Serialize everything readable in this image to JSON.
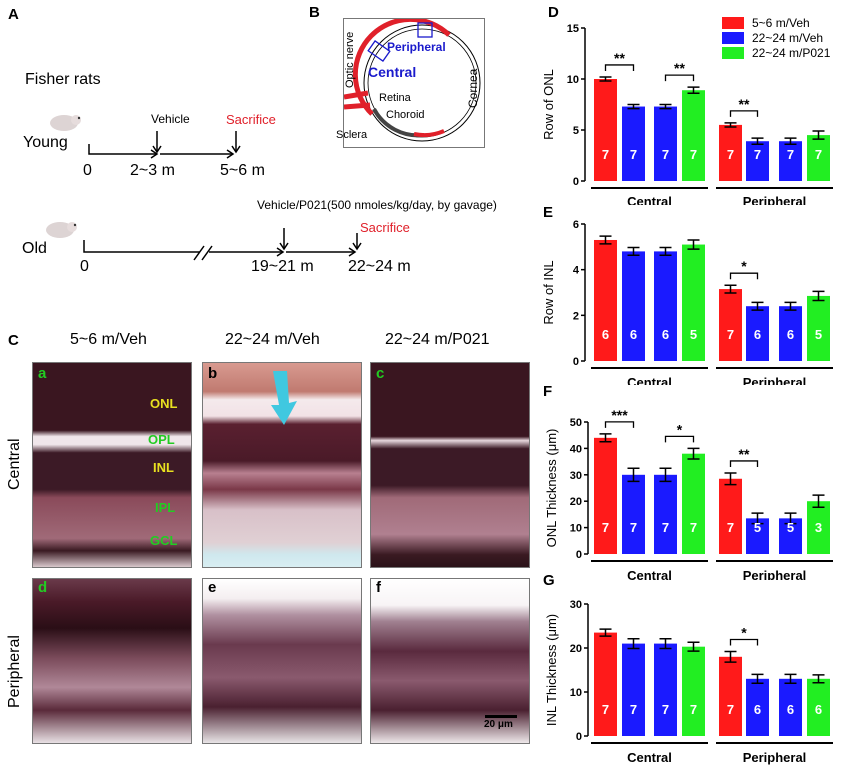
{
  "panel_a": {
    "label": "A",
    "title": "Fisher rats",
    "young": {
      "label": "Young",
      "ticks": [
        "0",
        "2~3 m",
        "5~6 m"
      ],
      "treatment": "Vehicle",
      "endpoint": "Sacrifice"
    },
    "old": {
      "label": "Old",
      "ticks": [
        "0",
        "19~21 m",
        "22~24 m"
      ],
      "treatment": "Vehicle/P021(500 nmoles/kg/day, by gavage)",
      "endpoint": "Sacrifice"
    }
  },
  "panel_b": {
    "label": "B",
    "labels": {
      "optic_nerve": "Optic nerve",
      "peripheral": "Peripheral",
      "central": "Central",
      "cornea": "Cornea",
      "retina": "Retina",
      "choroid": "Choroid",
      "sclera": "Sclera"
    }
  },
  "panel_c": {
    "label": "C",
    "columns": [
      "5~6 m/Veh",
      "22~24 m/Veh",
      "22~24 m/P021"
    ],
    "rows": [
      "Central",
      "Peripheral"
    ],
    "subpanels": [
      "a",
      "b",
      "c",
      "d",
      "e",
      "f"
    ],
    "layers": [
      "ONL",
      "OPL",
      "INL",
      "IPL",
      "GCL"
    ],
    "scale_bar": "20 μm"
  },
  "colors": {
    "young_veh": "#ff1a1a",
    "old_veh": "#1a1aff",
    "old_p021": "#22ee22",
    "sacrifice": "#e0202a",
    "sig_blue": "#1a1acc"
  },
  "chart_data": [
    {
      "panel": "D",
      "type": "bar",
      "ylabel": "Row of ONL",
      "ylim": [
        0,
        15
      ],
      "yticks": [
        0,
        5,
        10,
        15
      ],
      "groups": [
        "Central",
        "Peripheral"
      ],
      "legend": [
        "5~6 m/Veh",
        "22~24 m/Veh",
        "22~24 m/P021"
      ],
      "legend_position": "top-right",
      "bars": [
        {
          "group": "Central",
          "series": "5~6 m/Veh",
          "value": 10.0,
          "err": 0.2,
          "n": "7"
        },
        {
          "group": "Central",
          "series": "22~24 m/Veh",
          "value": 7.3,
          "err": 0.2,
          "n": "7"
        },
        {
          "group": "Central",
          "series": "22~24 m/Veh",
          "value": 7.3,
          "err": 0.2,
          "n": "7"
        },
        {
          "group": "Central",
          "series": "22~24 m/P021",
          "value": 8.9,
          "err": 0.3,
          "n": "7"
        },
        {
          "group": "Peripheral",
          "series": "5~6 m/Veh",
          "value": 5.5,
          "err": 0.2,
          "n": "7"
        },
        {
          "group": "Peripheral",
          "series": "22~24 m/Veh",
          "value": 3.9,
          "err": 0.3,
          "n": "7"
        },
        {
          "group": "Peripheral",
          "series": "22~24 m/Veh",
          "value": 3.9,
          "err": 0.3,
          "n": "7"
        },
        {
          "group": "Peripheral",
          "series": "22~24 m/P021",
          "value": 4.5,
          "err": 0.4,
          "n": "7"
        }
      ],
      "significance": [
        {
          "bars": [
            0,
            1
          ],
          "label": "**"
        },
        {
          "bars": [
            2,
            3
          ],
          "label": "**"
        },
        {
          "bars": [
            4,
            5
          ],
          "label": "**"
        }
      ]
    },
    {
      "panel": "E",
      "type": "bar",
      "ylabel": "Row of INL",
      "ylim": [
        0,
        6
      ],
      "yticks": [
        0,
        2,
        4,
        6
      ],
      "groups": [
        "Central",
        "Peripheral"
      ],
      "bars": [
        {
          "group": "Central",
          "series": "5~6 m/Veh",
          "value": 5.3,
          "err": 0.17,
          "n": "6"
        },
        {
          "group": "Central",
          "series": "22~24 m/Veh",
          "value": 4.8,
          "err": 0.17,
          "n": "6"
        },
        {
          "group": "Central",
          "series": "22~24 m/Veh",
          "value": 4.8,
          "err": 0.17,
          "n": "6"
        },
        {
          "group": "Central",
          "series": "22~24 m/P021",
          "value": 5.1,
          "err": 0.2,
          "n": "5"
        },
        {
          "group": "Peripheral",
          "series": "5~6 m/Veh",
          "value": 3.15,
          "err": 0.17,
          "n": "7"
        },
        {
          "group": "Peripheral",
          "series": "22~24 m/Veh",
          "value": 2.4,
          "err": 0.17,
          "n": "6"
        },
        {
          "group": "Peripheral",
          "series": "22~24 m/Veh",
          "value": 2.4,
          "err": 0.17,
          "n": "6"
        },
        {
          "group": "Peripheral",
          "series": "22~24 m/P021",
          "value": 2.85,
          "err": 0.2,
          "n": "5"
        }
      ],
      "significance": [
        {
          "bars": [
            4,
            5
          ],
          "label": "*"
        }
      ]
    },
    {
      "panel": "F",
      "type": "bar",
      "ylabel": "ONL Thickness (μm)",
      "ylim": [
        0,
        50
      ],
      "yticks": [
        0,
        10,
        20,
        30,
        40,
        50
      ],
      "groups": [
        "Central",
        "Peripheral"
      ],
      "bars": [
        {
          "group": "Central",
          "series": "5~6 m/Veh",
          "value": 44,
          "err": 1.5,
          "n": "7"
        },
        {
          "group": "Central",
          "series": "22~24 m/Veh",
          "value": 30,
          "err": 2.5,
          "n": "7"
        },
        {
          "group": "Central",
          "series": "22~24 m/Veh",
          "value": 30,
          "err": 2.5,
          "n": "7"
        },
        {
          "group": "Central",
          "series": "22~24 m/P021",
          "value": 38,
          "err": 2,
          "n": "7"
        },
        {
          "group": "Peripheral",
          "series": "5~6 m/Veh",
          "value": 28.5,
          "err": 2.2,
          "n": "7"
        },
        {
          "group": "Peripheral",
          "series": "22~24 m/Veh",
          "value": 13.5,
          "err": 2,
          "n": "5"
        },
        {
          "group": "Peripheral",
          "series": "22~24 m/Veh",
          "value": 13.5,
          "err": 2,
          "n": "5"
        },
        {
          "group": "Peripheral",
          "series": "22~24 m/P021",
          "value": 20,
          "err": 2.3,
          "n": "3"
        }
      ],
      "significance": [
        {
          "bars": [
            0,
            1
          ],
          "label": "***"
        },
        {
          "bars": [
            2,
            3
          ],
          "label": "*"
        },
        {
          "bars": [
            4,
            5
          ],
          "label": "**"
        }
      ]
    },
    {
      "panel": "G",
      "type": "bar",
      "ylabel": "INL Thickness (μm)",
      "ylim": [
        0,
        30
      ],
      "yticks": [
        0,
        10,
        20,
        30
      ],
      "groups": [
        "Central",
        "Peripheral"
      ],
      "bars": [
        {
          "group": "Central",
          "series": "5~6 m/Veh",
          "value": 23.5,
          "err": 0.8,
          "n": "7"
        },
        {
          "group": "Central",
          "series": "22~24 m/Veh",
          "value": 21,
          "err": 1.1,
          "n": "7"
        },
        {
          "group": "Central",
          "series": "22~24 m/Veh",
          "value": 21,
          "err": 1.1,
          "n": "7"
        },
        {
          "group": "Central",
          "series": "22~24 m/P021",
          "value": 20.3,
          "err": 1.0,
          "n": "7"
        },
        {
          "group": "Peripheral",
          "series": "5~6 m/Veh",
          "value": 18,
          "err": 1.2,
          "n": "7"
        },
        {
          "group": "Peripheral",
          "series": "22~24 m/Veh",
          "value": 13,
          "err": 1.0,
          "n": "6"
        },
        {
          "group": "Peripheral",
          "series": "22~24 m/Veh",
          "value": 13,
          "err": 1.0,
          "n": "6"
        },
        {
          "group": "Peripheral",
          "series": "22~24 m/P021",
          "value": 13,
          "err": 0.9,
          "n": "6"
        }
      ],
      "significance": [
        {
          "bars": [
            4,
            5
          ],
          "label": "*"
        }
      ]
    }
  ]
}
